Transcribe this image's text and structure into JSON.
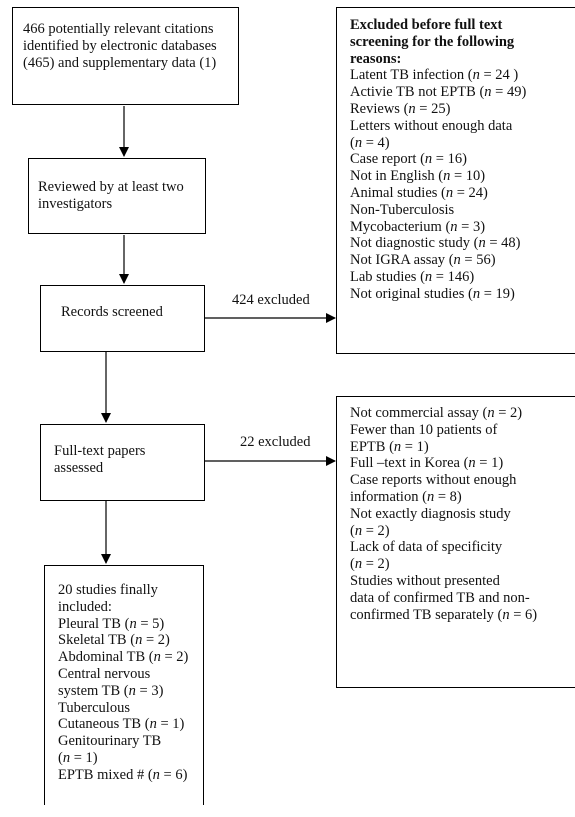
{
  "boxes": {
    "identified": {
      "lines": [
        "466 potentially relevant citations",
        "identified by electronic databases",
        " (465) and supplementary data (1)"
      ]
    },
    "reviewed": {
      "lines": [
        "Reviewed by at least two",
        "investigators"
      ]
    },
    "screened": {
      "lines": [
        "Records screened"
      ]
    },
    "fulltext": {
      "lines": [
        "Full-text papers",
        "assessed"
      ]
    },
    "included": {
      "lines": [
        "20 studies finally",
        "included:",
        "Pleural TB (n = 5)",
        "Skeletal TB (n = 2)",
        "Abdominal TB (n = 2)",
        "Central nervous",
        "system TB (n = 3)",
        "Tuberculous",
        "Cutaneous TB (n = 1)",
        "Genitourinary TB",
        "(n = 1)",
        "EPTB mixed # (n = 6)"
      ]
    },
    "excluded_screening": {
      "heading": [
        "Excluded before full text",
        "screening for the following",
        "reasons:"
      ],
      "lines": [
        "Latent TB infection (n = 24 )",
        "Activie TB not EPTB (n = 49)",
        "Reviews (n = 25)",
        "Letters without enough data",
        "(n = 4)",
        "Case report (n = 16)",
        "Not in English (n = 10)",
        "Animal studies (n = 24)",
        "Non-Tuberculosis",
        "Mycobacterium (n = 3)",
        "Not diagnostic study (n = 48)",
        "Not IGRA assay (n = 56)",
        "Lab studies (n = 146)",
        "Not original studies (n = 19)"
      ]
    },
    "excluded_fulltext": {
      "lines": [
        "Not commercial assay (n = 2)",
        "Fewer than 10 patients of",
        "EPTB (n = 1)",
        "Full –text in Korea (n = 1)",
        "Case reports without enough",
        "information (n = 8)",
        "Not exactly diagnosis study",
        "(n = 2)",
        "Lack of data of specificity",
        "(n = 2)",
        "Studies without presented",
        "data of confirmed TB and non-",
        "confirmed TB separately (n = 6)"
      ]
    }
  },
  "labels": {
    "excluded_424": "424 excluded",
    "excluded_22": "22 excluded"
  }
}
